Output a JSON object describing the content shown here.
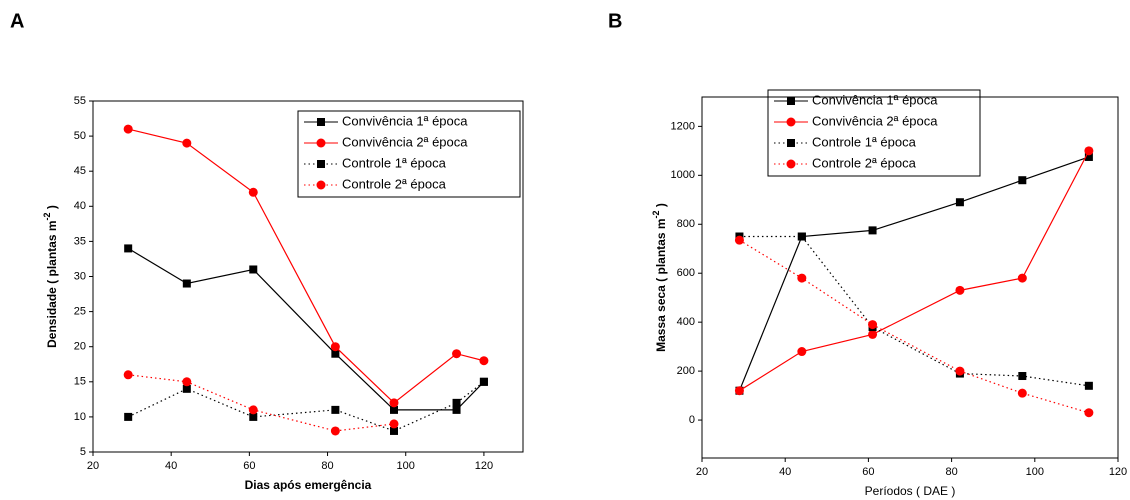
{
  "chart_data": [
    {
      "type": "line",
      "panel": "A",
      "x_label": "Dias após emergência",
      "y_label": "Densidade ( plantas m",
      "y_label_sup": "-2",
      "y_label_end": " )",
      "x": [
        29,
        44,
        61,
        82,
        97,
        113,
        120
      ],
      "xlim": [
        20,
        130
      ],
      "xticks": [
        20,
        40,
        60,
        80,
        100,
        120
      ],
      "ylim": [
        5,
        55
      ],
      "yticks": [
        5,
        10,
        15,
        20,
        25,
        30,
        35,
        40,
        45,
        50,
        55
      ],
      "legend": "upper right",
      "bold_labels": true,
      "series": [
        {
          "name": "Convivência 1ª época",
          "color": "#000000",
          "marker": "square",
          "dash": "solid",
          "values": [
            34,
            29,
            31,
            19,
            11,
            11,
            15
          ]
        },
        {
          "name": "Convivência 2ª época",
          "color": "#ff0000",
          "marker": "circle",
          "dash": "solid",
          "values": [
            51,
            49,
            42,
            20,
            12,
            19,
            18
          ]
        },
        {
          "name": "Controle 1ª época",
          "color": "#000000",
          "marker": "square",
          "dash": "dotted",
          "values": [
            10,
            14,
            10,
            11,
            8,
            12,
            15
          ]
        },
        {
          "name": "Controle 2ª época",
          "color": "#ff0000",
          "marker": "circle",
          "dash": "dotted",
          "values": [
            16,
            15,
            11,
            8,
            9,
            null,
            null
          ]
        }
      ]
    },
    {
      "type": "line",
      "panel": "B",
      "x_label": "Períodos ( DAE )",
      "y_label": "Massa seca ( plantas m",
      "y_label_sup": "-2",
      "y_label_end": " )",
      "x": [
        29,
        44,
        61,
        82,
        97,
        113
      ],
      "xlim": [
        20,
        120
      ],
      "xticks": [
        20,
        40,
        60,
        80,
        100,
        120
      ],
      "ylim": [
        -155,
        1320
      ],
      "yticks": [
        0,
        200,
        400,
        600,
        800,
        1000,
        1200
      ],
      "legend": "upper left",
      "bold_labels": false,
      "series": [
        {
          "name": "Convivência 1ª época",
          "color": "#000000",
          "marker": "square",
          "dash": "solid",
          "values": [
            120,
            750,
            775,
            890,
            980,
            1075
          ]
        },
        {
          "name": "Convivência 2ª época",
          "color": "#ff0000",
          "marker": "circle",
          "dash": "solid",
          "values": [
            120,
            280,
            350,
            530,
            580,
            1100
          ]
        },
        {
          "name": "Controle 1ª época",
          "color": "#000000",
          "marker": "square",
          "dash": "dotted",
          "values": [
            750,
            750,
            380,
            190,
            180,
            140
          ]
        },
        {
          "name": "Controle 2ª época",
          "color": "#ff0000",
          "marker": "circle",
          "dash": "dotted",
          "values": [
            735,
            580,
            390,
            200,
            110,
            30
          ]
        }
      ]
    }
  ]
}
